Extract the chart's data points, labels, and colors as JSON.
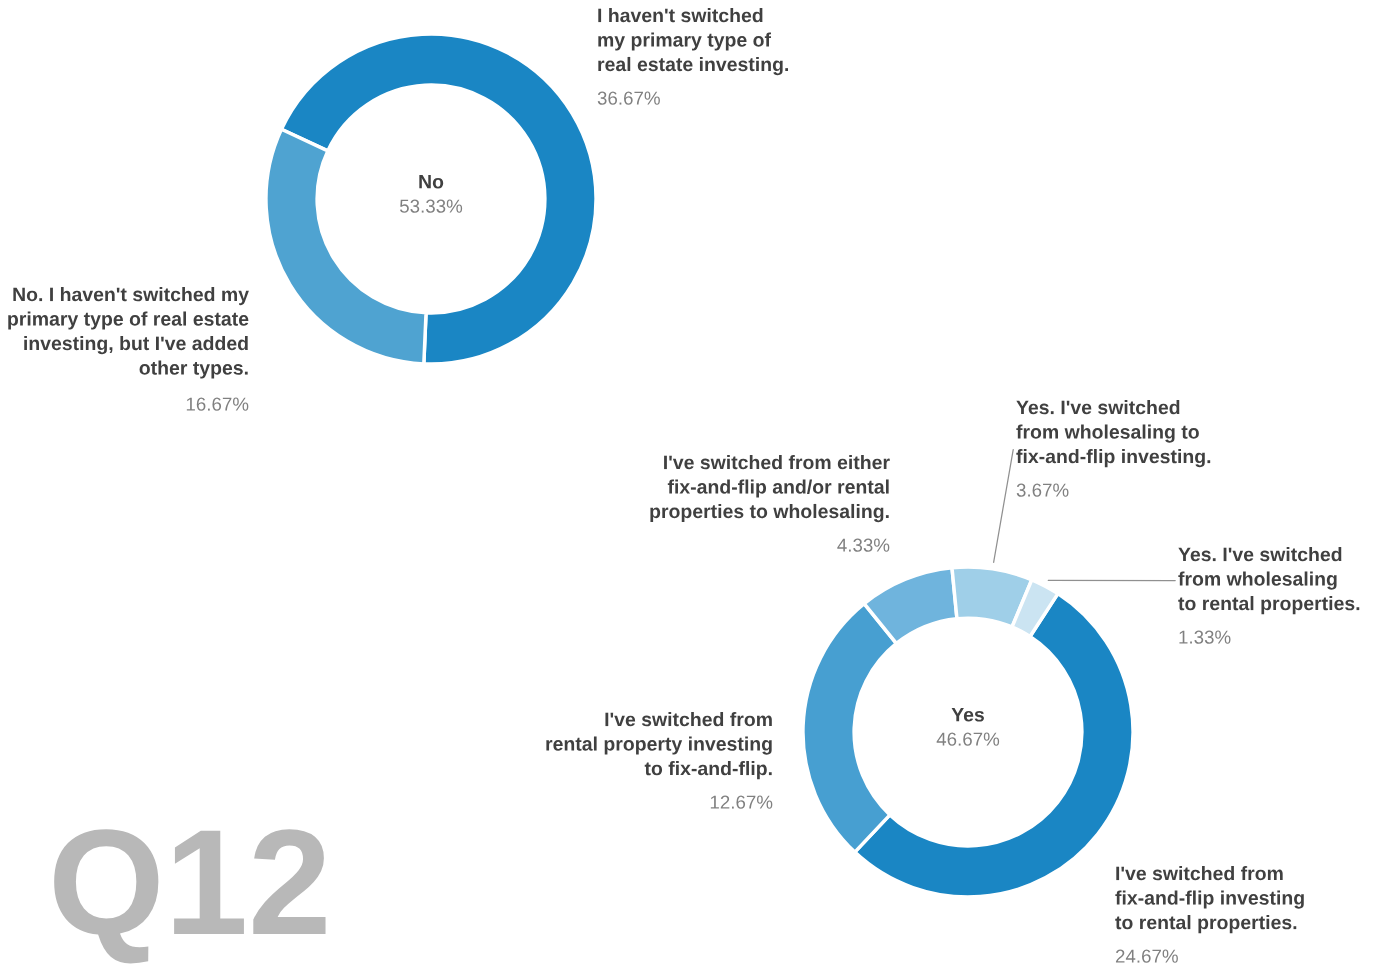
{
  "chart_data": [
    {
      "type": "donut",
      "title": "No",
      "subtitle": "53.33%",
      "categories": [
        "I haven't switched\nmy primary type of\nreal estate investing.",
        "No. I haven't switched my\nprimary type of real estate\ninvesting, but I've added\nother types."
      ],
      "values": [
        36.67,
        16.67
      ],
      "value_labels": [
        "36.67%",
        "16.67%"
      ],
      "colors": [
        "#1a86c4",
        "#4fa3d1"
      ],
      "annotations": [
        "Q12"
      ]
    },
    {
      "type": "donut",
      "title": "Yes",
      "subtitle": "46.67%",
      "categories": [
        "I've switched from\nfix-and-flip investing\nto rental properties.",
        "I've switched from\nrental property investing\nto fix-and-flip.",
        "I've switched from either\nfix-and-flip and/or rental\nproperties to wholesaling.",
        "Yes. I've switched\nfrom wholesaling to\nfix-and-flip investing.",
        "Yes. I've switched\nfrom wholesaling\nto rental properties."
      ],
      "values": [
        24.67,
        12.67,
        4.33,
        3.67,
        1.33
      ],
      "value_labels": [
        "24.67%",
        "12.67%",
        "4.33%",
        "3.67%",
        "1.33%"
      ],
      "colors": [
        "#1a86c4",
        "#479fd1",
        "#6fb4dd",
        "#9fcfe8",
        "#cbe4f2"
      ]
    }
  ]
}
